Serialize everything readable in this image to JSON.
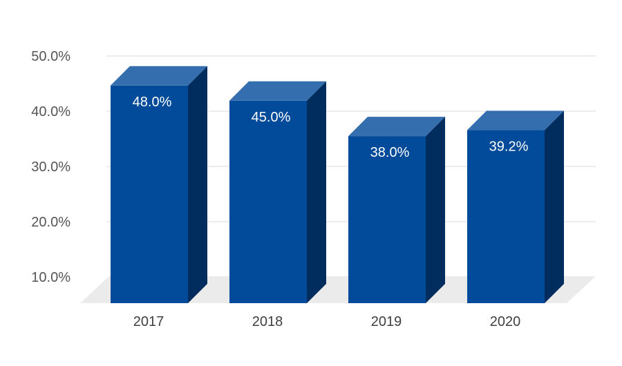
{
  "chart_data": {
    "type": "bar",
    "categories": [
      "2017",
      "2018",
      "2019",
      "2020"
    ],
    "values": [
      48.0,
      45.0,
      38.0,
      39.2
    ],
    "data_labels": [
      "48.0%",
      "45.0%",
      "38.0%",
      "39.2%"
    ],
    "y_ticks": [
      10,
      20,
      30,
      40,
      50
    ],
    "y_tick_labels": [
      "10.0%",
      "20.0%",
      "30.0%",
      "40.0%",
      "50.0%"
    ],
    "ylim": [
      5,
      50
    ],
    "title": "",
    "xlabel": "",
    "ylabel": "",
    "grid": true,
    "legend": "none",
    "style": "3d-column",
    "colors": {
      "bar_front": "#024b9a",
      "bar_top": "#346eae",
      "bar_side": "#002d5e",
      "floor": "#ebebeb",
      "grid": "#d9d9d9"
    }
  }
}
